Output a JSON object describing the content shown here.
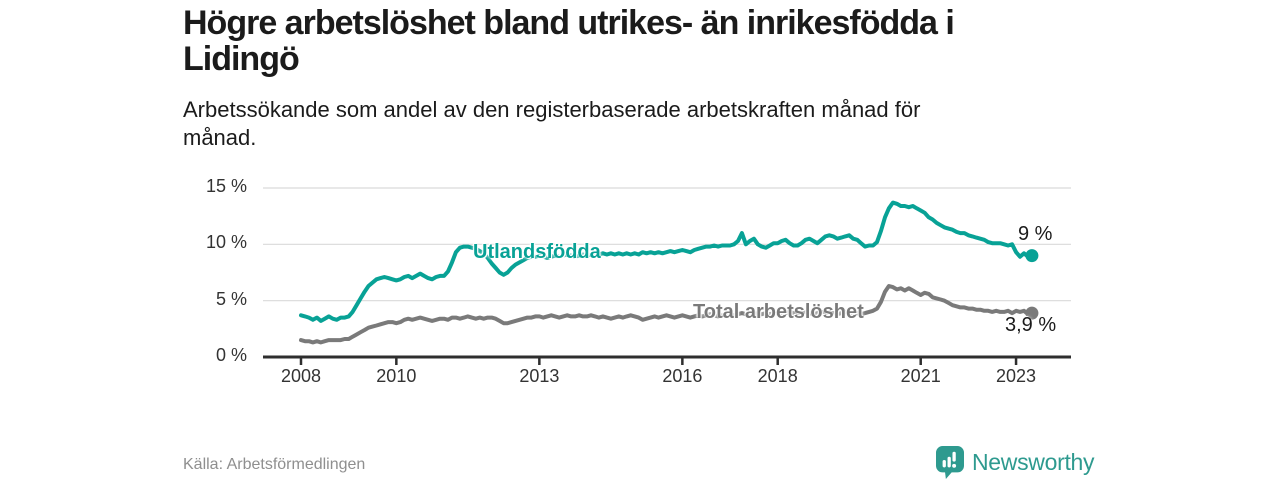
{
  "header": {
    "title_line1": "Högre arbetslöshet bland utrikes- än inrikesfödda i",
    "title_line2": "Lidingö",
    "subtitle_line1": "Arbetssökande som andel av den registerbaserade arbetskraften månad för",
    "subtitle_line2": "månad."
  },
  "footer": {
    "source": "Källa: Arbetsförmedlingen",
    "brand": "Newsworthy"
  },
  "colors": {
    "accent_teal": "#08a296",
    "series_gray": "#7a7a7a",
    "axis": "#2e2e2e",
    "gridline": "#d9d9d9",
    "text_dark": "#1b1b1b",
    "tick_text": "#333333",
    "source_text": "#8f8f8f",
    "brand_teal": "#2e9a8f"
  },
  "chart_data": {
    "type": "line",
    "title": "Högre arbetslöshet bland utrikes- än inrikesfödda i Lidingö",
    "subtitle": "Arbetssökande som andel av den registerbaserade arbetskraften månad för månad.",
    "xlabel": "",
    "ylabel": "",
    "grid": "horizontal",
    "legend_position": "inline-labels",
    "x_domain_start": 2008,
    "x_frequency": "monthly",
    "x_ticks": [
      2008,
      2010,
      2013,
      2016,
      2018,
      2021,
      2023
    ],
    "x_tick_labels": [
      "2008",
      "2010",
      "2013",
      "2016",
      "2018",
      "2021",
      "2023"
    ],
    "y_ticks": [
      0,
      5,
      10,
      15
    ],
    "y_tick_labels": [
      "0 %",
      "5 %",
      "10 %",
      "15 %"
    ],
    "ylim": [
      0,
      15.8
    ],
    "series": [
      {
        "name": "Utlandsfödda",
        "color": "#08a296",
        "end_label": "9 %",
        "end_value": 9.0,
        "values": [
          3.7,
          3.6,
          3.5,
          3.3,
          3.5,
          3.2,
          3.4,
          3.6,
          3.4,
          3.3,
          3.5,
          3.5,
          3.6,
          4.0,
          4.6,
          5.2,
          5.8,
          6.3,
          6.6,
          6.9,
          7.0,
          7.1,
          7.0,
          6.9,
          6.8,
          6.9,
          7.1,
          7.2,
          7.0,
          7.2,
          7.4,
          7.2,
          7.0,
          6.9,
          7.1,
          7.2,
          7.2,
          7.6,
          8.4,
          9.3,
          9.7,
          9.8,
          9.8,
          9.7,
          9.6,
          9.4,
          9.2,
          8.8,
          8.3,
          7.9,
          7.5,
          7.3,
          7.5,
          7.9,
          8.2,
          8.4,
          8.6,
          8.8,
          8.9,
          8.9,
          9.0,
          8.9,
          8.8,
          8.9,
          9.0,
          8.9,
          9.0,
          9.1,
          9.0,
          8.9,
          9.0,
          9.1,
          9.0,
          9.1,
          9.0,
          9.1,
          9.2,
          9.1,
          9.2,
          9.1,
          9.2,
          9.1,
          9.2,
          9.1,
          9.2,
          9.1,
          9.3,
          9.2,
          9.3,
          9.2,
          9.3,
          9.2,
          9.3,
          9.4,
          9.3,
          9.4,
          9.5,
          9.4,
          9.3,
          9.5,
          9.6,
          9.7,
          9.8,
          9.8,
          9.9,
          9.8,
          9.9,
          9.9,
          9.9,
          10.0,
          10.3,
          11.0,
          10.0,
          10.3,
          10.5,
          10.0,
          9.8,
          9.7,
          9.9,
          10.1,
          10.1,
          10.3,
          10.4,
          10.1,
          9.9,
          9.9,
          10.1,
          10.4,
          10.5,
          10.3,
          10.1,
          10.4,
          10.7,
          10.8,
          10.7,
          10.5,
          10.6,
          10.7,
          10.8,
          10.5,
          10.4,
          10.1,
          9.8,
          9.9,
          9.9,
          10.2,
          11.2,
          12.4,
          13.2,
          13.7,
          13.6,
          13.4,
          13.4,
          13.3,
          13.4,
          13.2,
          13.0,
          12.8,
          12.4,
          12.2,
          11.9,
          11.7,
          11.5,
          11.4,
          11.3,
          11.1,
          11.0,
          11.0,
          10.8,
          10.7,
          10.6,
          10.5,
          10.4,
          10.2,
          10.1,
          10.1,
          10.1,
          10.0,
          9.9,
          10.0,
          9.3,
          8.9,
          9.2,
          8.9,
          9.0
        ]
      },
      {
        "name": "Total arbetslöshet",
        "color": "#7a7a7a",
        "end_label": "3,9 %",
        "end_value": 3.9,
        "values": [
          1.5,
          1.4,
          1.4,
          1.3,
          1.4,
          1.3,
          1.4,
          1.5,
          1.5,
          1.5,
          1.5,
          1.6,
          1.6,
          1.8,
          2.0,
          2.2,
          2.4,
          2.6,
          2.7,
          2.8,
          2.9,
          3.0,
          3.1,
          3.1,
          3.0,
          3.1,
          3.3,
          3.4,
          3.3,
          3.4,
          3.5,
          3.4,
          3.3,
          3.2,
          3.3,
          3.4,
          3.4,
          3.3,
          3.5,
          3.5,
          3.4,
          3.5,
          3.6,
          3.5,
          3.4,
          3.5,
          3.4,
          3.5,
          3.5,
          3.4,
          3.2,
          3.0,
          3.0,
          3.1,
          3.2,
          3.3,
          3.4,
          3.5,
          3.5,
          3.6,
          3.6,
          3.5,
          3.6,
          3.7,
          3.6,
          3.5,
          3.6,
          3.7,
          3.6,
          3.6,
          3.7,
          3.6,
          3.6,
          3.7,
          3.6,
          3.5,
          3.6,
          3.5,
          3.4,
          3.5,
          3.6,
          3.5,
          3.6,
          3.7,
          3.6,
          3.5,
          3.3,
          3.4,
          3.5,
          3.6,
          3.5,
          3.6,
          3.7,
          3.6,
          3.5,
          3.6,
          3.7,
          3.6,
          3.5,
          3.6,
          3.7,
          3.6,
          3.7,
          3.8,
          3.7,
          3.6,
          3.7,
          3.8,
          3.8,
          3.7,
          3.8,
          3.9,
          3.8,
          3.7,
          3.8,
          3.9,
          3.8,
          3.9,
          3.8,
          3.9,
          3.9,
          3.8,
          3.9,
          4.0,
          3.9,
          3.8,
          3.9,
          4.0,
          3.9,
          3.8,
          3.9,
          4.0,
          3.9,
          4.0,
          3.9,
          3.8,
          3.9,
          4.0,
          3.9,
          3.8,
          3.9,
          3.8,
          3.9,
          4.0,
          4.1,
          4.3,
          4.9,
          5.8,
          6.3,
          6.2,
          6.0,
          6.1,
          5.9,
          6.1,
          5.9,
          5.7,
          5.5,
          5.7,
          5.6,
          5.3,
          5.2,
          5.1,
          5.0,
          4.8,
          4.6,
          4.5,
          4.4,
          4.4,
          4.3,
          4.3,
          4.2,
          4.2,
          4.1,
          4.1,
          4.0,
          4.1,
          4.0,
          4.0,
          4.1,
          3.9,
          4.1,
          4.0,
          4.1,
          3.8,
          3.9
        ]
      }
    ]
  }
}
